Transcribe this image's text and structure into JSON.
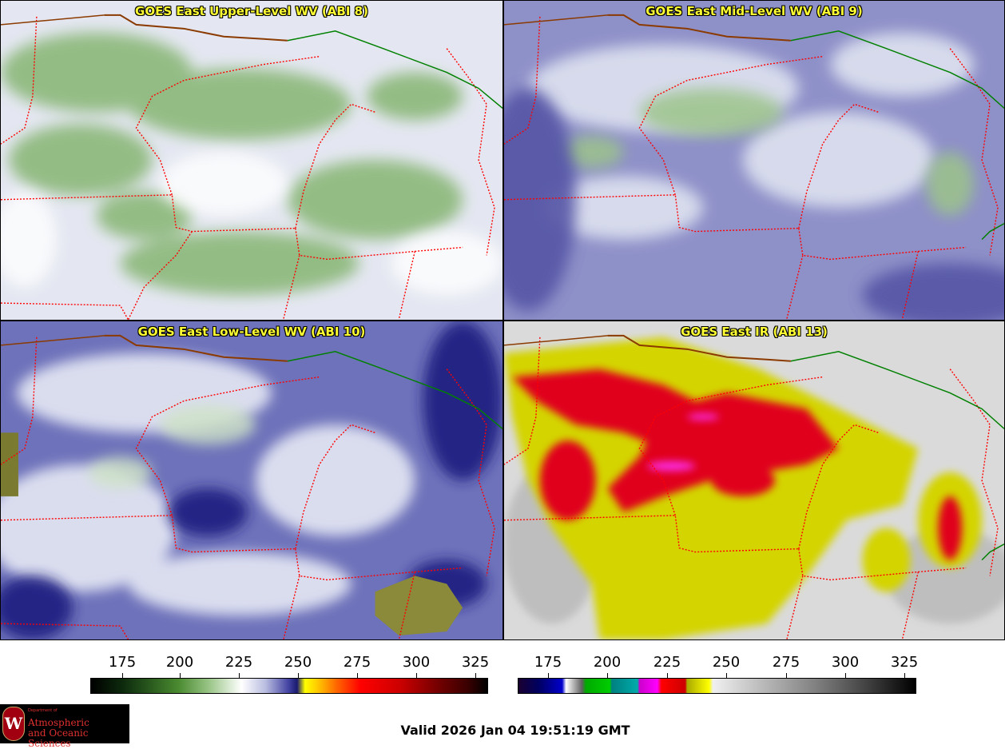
{
  "panels": [
    {
      "title": "GOES East Upper-Level WV (ABI 8)",
      "colors": {
        "bg": "#e6e9f2",
        "cloud": "#7fb06a",
        "dark": "#b9bde0"
      }
    },
    {
      "title": "GOES East Mid-Level WV (ABI 9)",
      "colors": {
        "bg": "#8a8cc4",
        "cloud": "#9cc48a",
        "dark": "#5a5aa8"
      }
    },
    {
      "title": "GOES East Low-Level WV (ABI 10)",
      "colors": {
        "bg": "#6c70b8",
        "cloud": "#e8ecf5",
        "dark": "#1c1e80"
      }
    },
    {
      "title": "GOES East IR (ABI 13)",
      "colors": {
        "bg": "#d8d8d8",
        "cloud": "#e0e000",
        "dark": "#e0001a"
      }
    }
  ],
  "colorbars": [
    {
      "name": "water-vapor",
      "ticks": [
        "175",
        "200",
        "225",
        "250",
        "275",
        "300",
        "325"
      ]
    },
    {
      "name": "infrared",
      "ticks": [
        "175",
        "200",
        "225",
        "250",
        "275",
        "300",
        "325"
      ]
    }
  ],
  "valid_time": "Valid 2026 Jan 04 19:51:19 GMT",
  "logo": {
    "dept": "Department of",
    "name_line1": "Atmospheric",
    "name_line2": "and Oceanic Sciences",
    "crest_letter": "W"
  },
  "map_colors": {
    "state_border": "#ff0000",
    "coast": "#008000",
    "canada_border": "#8b3a00"
  }
}
